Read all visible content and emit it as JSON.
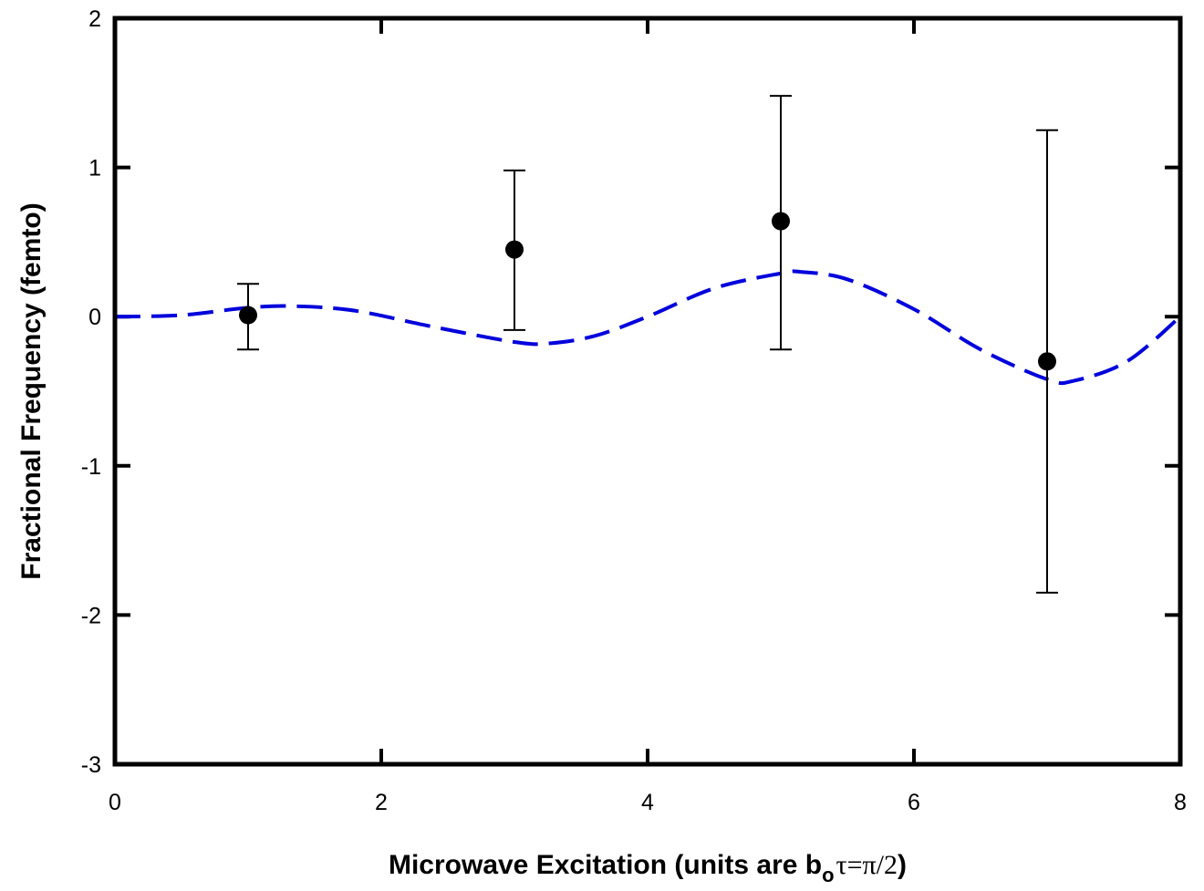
{
  "chart_data": {
    "type": "scatter",
    "xlabel": "Microwave Excitation (units are b",
    "xlabel_subscript": "o",
    "xlabel_math": "τ=π/2",
    "xlabel_close": ")",
    "ylabel": "Fractional Frequency (femto)",
    "xlim": [
      0,
      8
    ],
    "ylim": [
      -3,
      2
    ],
    "xticks": [
      "0",
      "2",
      "4",
      "6",
      "8"
    ],
    "yticks": [
      "-3",
      "-2",
      "-1",
      "0",
      "1",
      "2"
    ],
    "grid": false,
    "series": [
      {
        "kind": "points_with_error_bars",
        "color": "#000000",
        "points": [
          {
            "x": 1,
            "y": 0.01,
            "err_low": -0.22,
            "err_high": 0.22
          },
          {
            "x": 3,
            "y": 0.45,
            "err_low": -0.09,
            "err_high": 0.98
          },
          {
            "x": 5,
            "y": 0.64,
            "err_low": -0.22,
            "err_high": 1.48
          },
          {
            "x": 7,
            "y": -0.3,
            "err_low": -1.85,
            "err_high": 1.25
          }
        ]
      },
      {
        "kind": "dashed_curve",
        "color": "#0000dd",
        "points": [
          {
            "x": 0.0,
            "y": 0.0
          },
          {
            "x": 0.5,
            "y": 0.01
          },
          {
            "x": 1.0,
            "y": 0.06
          },
          {
            "x": 1.35,
            "y": 0.07
          },
          {
            "x": 1.8,
            "y": 0.04
          },
          {
            "x": 2.4,
            "y": -0.07
          },
          {
            "x": 3.0,
            "y": -0.17
          },
          {
            "x": 3.25,
            "y": -0.18
          },
          {
            "x": 3.6,
            "y": -0.13
          },
          {
            "x": 4.0,
            "y": 0.0
          },
          {
            "x": 4.5,
            "y": 0.19
          },
          {
            "x": 5.0,
            "y": 0.29
          },
          {
            "x": 5.15,
            "y": 0.3
          },
          {
            "x": 5.5,
            "y": 0.25
          },
          {
            "x": 6.0,
            "y": 0.05
          },
          {
            "x": 6.5,
            "y": -0.22
          },
          {
            "x": 7.0,
            "y": -0.42
          },
          {
            "x": 7.2,
            "y": -0.43
          },
          {
            "x": 7.6,
            "y": -0.3
          },
          {
            "x": 8.0,
            "y": 0.0
          }
        ]
      }
    ]
  }
}
